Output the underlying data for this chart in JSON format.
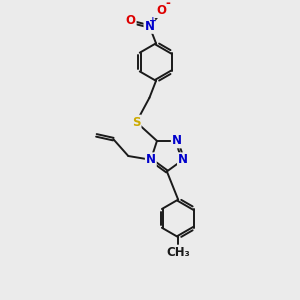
{
  "bg_color": "#ebebeb",
  "bond_color": "#1a1a1a",
  "N_color": "#0000cc",
  "S_color": "#ccaa00",
  "O_color": "#dd0000",
  "font_size": 8.5,
  "line_width": 1.4,
  "fig_width": 3.0,
  "fig_height": 3.0,
  "dpi": 100,
  "xlim": [
    0,
    300
  ],
  "ylim": [
    0,
    300
  ]
}
